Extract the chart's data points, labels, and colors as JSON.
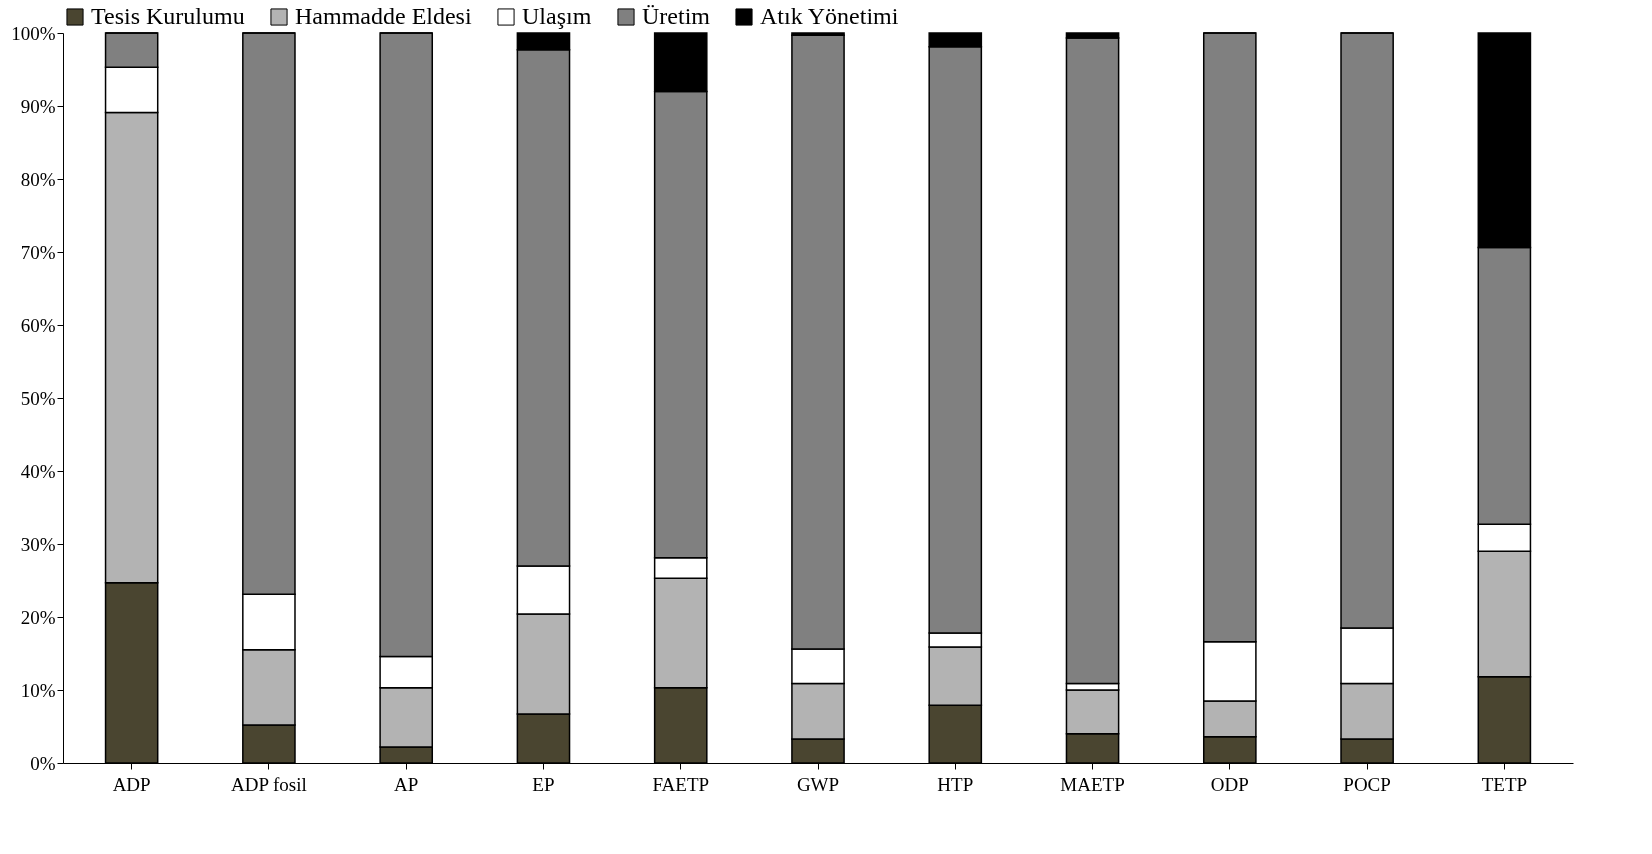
{
  "chart_data": {
    "type": "bar",
    "stacked": true,
    "legend": "top",
    "grid": false,
    "categories": [
      "ADP",
      "ADP fosil",
      "AP",
      "EP",
      "FAETP",
      "GWP",
      "HTP",
      "MAETP",
      "ODP",
      "POCP",
      "TETP"
    ],
    "ylim": [
      0,
      100
    ],
    "yticks": [
      {
        "value": 0,
        "label": "0%"
      },
      {
        "value": 10,
        "label": "10%"
      },
      {
        "value": 20,
        "label": "20%"
      },
      {
        "value": 30,
        "label": "30%"
      },
      {
        "value": 40,
        "label": "40%"
      },
      {
        "value": 50,
        "label": "50%"
      },
      {
        "value": 60,
        "label": "60%"
      },
      {
        "value": 70,
        "label": "70%"
      },
      {
        "value": 80,
        "label": "80%"
      },
      {
        "value": 90,
        "label": "90%"
      },
      {
        "value": 100,
        "label": "100%"
      }
    ],
    "series": [
      {
        "name": "Tesis Kurulumu",
        "color": "#4a4530",
        "values": [
          24.7,
          5.2,
          2.2,
          6.7,
          10.3,
          3.3,
          7.9,
          4.0,
          3.6,
          3.3,
          11.8
        ]
      },
      {
        "name": "Hammadde Eldesi",
        "color": "#b3b3b3",
        "values": [
          64.4,
          10.3,
          8.1,
          13.7,
          15.0,
          7.6,
          8.0,
          6.0,
          4.9,
          7.6,
          17.2
        ]
      },
      {
        "name": "Ulaşım",
        "color": "#ffffff",
        "values": [
          6.2,
          7.6,
          4.3,
          6.6,
          2.8,
          4.7,
          1.9,
          0.9,
          8.1,
          7.6,
          3.7
        ]
      },
      {
        "name": "Üretim",
        "color": "#808080",
        "values": [
          4.7,
          76.9,
          85.4,
          70.7,
          63.9,
          84.1,
          80.3,
          88.4,
          83.4,
          81.5,
          37.9
        ]
      },
      {
        "name": "Atık Yönetimi",
        "color": "#000000",
        "values": [
          0,
          0,
          0,
          2.3,
          8.0,
          0.3,
          1.9,
          0.7,
          0,
          0,
          29.4
        ]
      }
    ]
  }
}
